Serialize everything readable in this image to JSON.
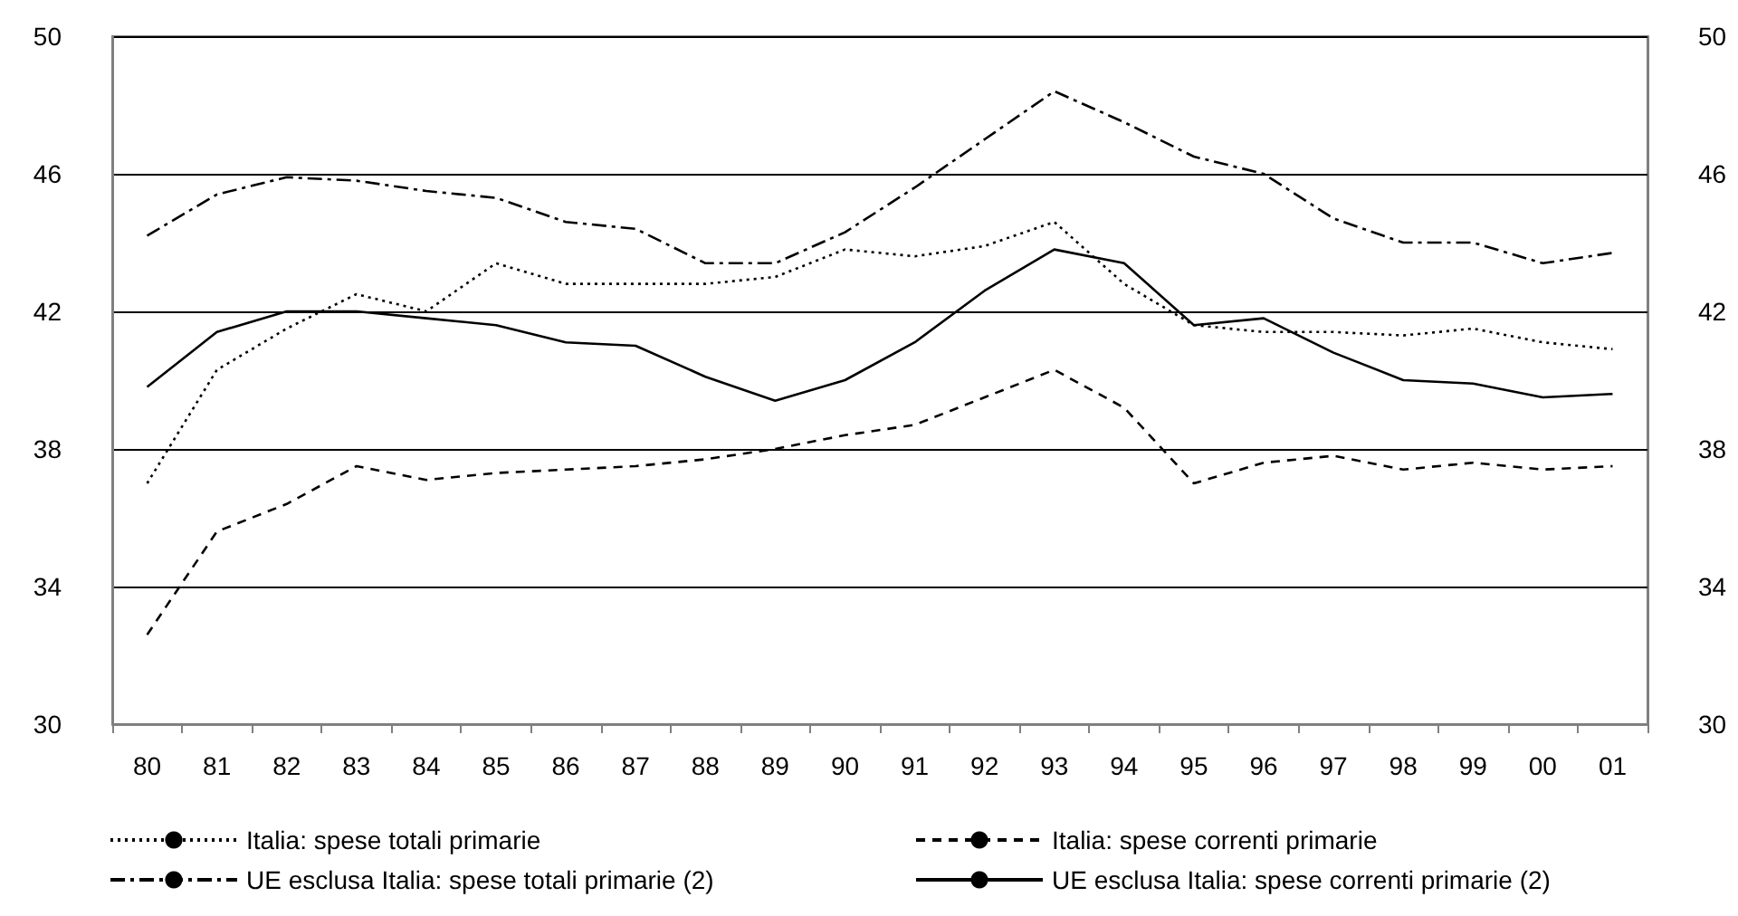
{
  "chart_data": {
    "type": "line",
    "categories": [
      "80",
      "81",
      "82",
      "83",
      "84",
      "85",
      "86",
      "87",
      "88",
      "89",
      "90",
      "91",
      "92",
      "93",
      "94",
      "95",
      "96",
      "97",
      "98",
      "99",
      "00",
      "01"
    ],
    "series": [
      {
        "name": "Italia: spese totali primarie",
        "color": "#000000",
        "line_style": "dotted",
        "values": [
          37.0,
          40.3,
          41.5,
          42.5,
          42.0,
          43.4,
          42.8,
          42.8,
          42.8,
          43.0,
          43.8,
          43.6,
          43.9,
          44.6,
          42.8,
          41.6,
          41.4,
          41.4,
          41.3,
          41.5,
          41.1,
          40.9
        ]
      },
      {
        "name": "Italia: spese correnti primarie",
        "color": "#000000",
        "line_style": "dashed",
        "values": [
          32.6,
          35.6,
          36.4,
          37.5,
          37.1,
          37.3,
          37.4,
          37.5,
          37.7,
          38.0,
          38.4,
          38.7,
          39.5,
          40.3,
          39.2,
          37.0,
          37.6,
          37.8,
          37.4,
          37.6,
          37.4,
          37.5
        ]
      },
      {
        "name": "UE esclusa Italia: spese totali primarie (2)",
        "color": "#000000",
        "line_style": "dashdot",
        "values": [
          44.2,
          45.4,
          45.9,
          45.8,
          45.5,
          45.3,
          44.6,
          44.4,
          43.4,
          43.4,
          44.3,
          45.6,
          47.0,
          48.4,
          47.5,
          46.5,
          46.0,
          44.7,
          44.0,
          44.0,
          43.4,
          43.7
        ]
      },
      {
        "name": "UE esclusa Italia: spese correnti primarie (2)",
        "color": "#000000",
        "line_style": "solid",
        "values": [
          39.8,
          41.4,
          42.0,
          42.0,
          41.8,
          41.6,
          41.1,
          41.0,
          40.1,
          39.4,
          40.0,
          41.1,
          42.6,
          43.8,
          43.4,
          41.6,
          41.8,
          40.8,
          40.0,
          39.9,
          39.5,
          39.6
        ]
      }
    ],
    "ylim": [
      30,
      50
    ],
    "yticks": [
      30,
      34,
      38,
      42,
      46,
      50
    ],
    "y2lim": [
      30,
      50
    ],
    "y2ticks": [
      30,
      34,
      38,
      42,
      46,
      50
    ],
    "grid": "y",
    "legend": "bottom",
    "marker": "none"
  }
}
